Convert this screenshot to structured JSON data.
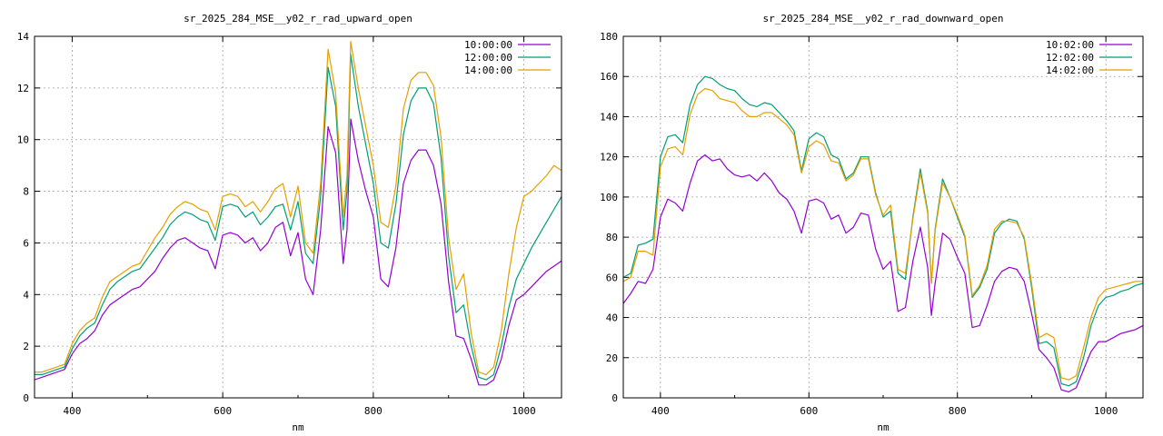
{
  "chart_data": [
    {
      "type": "line",
      "title": "sr_2025_284_MSE__y02_r_rad_upward_open",
      "xlabel": "nm",
      "ylabel": "",
      "xlim": [
        350,
        1050
      ],
      "ylim": [
        0,
        14
      ],
      "xticks": [
        400,
        600,
        800,
        1000
      ],
      "yticks": [
        0,
        2,
        4,
        6,
        8,
        10,
        12,
        14
      ],
      "grid": true,
      "legend": "top-right",
      "x": [
        350,
        360,
        370,
        380,
        390,
        400,
        410,
        420,
        430,
        440,
        450,
        460,
        470,
        480,
        490,
        500,
        510,
        520,
        530,
        540,
        550,
        560,
        570,
        580,
        590,
        600,
        610,
        620,
        630,
        640,
        650,
        660,
        670,
        680,
        690,
        700,
        710,
        720,
        730,
        740,
        750,
        760,
        765,
        770,
        780,
        790,
        800,
        810,
        820,
        830,
        840,
        850,
        860,
        870,
        880,
        890,
        900,
        910,
        920,
        930,
        940,
        950,
        960,
        970,
        980,
        990,
        1000,
        1010,
        1020,
        1030,
        1040,
        1050
      ],
      "series": [
        {
          "name": "10:00:00",
          "color": "#9400d3",
          "values": [
            0.7,
            0.8,
            0.9,
            1.0,
            1.1,
            1.7,
            2.1,
            2.3,
            2.6,
            3.2,
            3.6,
            3.8,
            4.0,
            4.2,
            4.3,
            4.6,
            4.9,
            5.4,
            5.8,
            6.1,
            6.2,
            6.0,
            5.8,
            5.7,
            5.0,
            6.3,
            6.4,
            6.3,
            6.0,
            6.2,
            5.7,
            6.0,
            6.6,
            6.8,
            5.5,
            6.4,
            4.6,
            4.0,
            6.5,
            10.5,
            9.5,
            5.2,
            6.5,
            10.8,
            9.2,
            8.0,
            7.0,
            4.6,
            4.3,
            5.8,
            8.3,
            9.2,
            9.6,
            9.6,
            9.0,
            7.5,
            4.5,
            2.4,
            2.3,
            1.5,
            0.5,
            0.5,
            0.7,
            1.5,
            2.8,
            3.8,
            4.0,
            4.3,
            4.6,
            4.9,
            5.1,
            5.3
          ]
        },
        {
          "name": "12:00:00",
          "color": "#009e73",
          "values": [
            0.9,
            0.9,
            1.0,
            1.1,
            1.2,
            1.9,
            2.4,
            2.7,
            2.9,
            3.6,
            4.2,
            4.5,
            4.7,
            4.9,
            5.0,
            5.4,
            5.8,
            6.2,
            6.7,
            7.0,
            7.2,
            7.1,
            6.9,
            6.8,
            6.1,
            7.4,
            7.5,
            7.4,
            7.0,
            7.2,
            6.7,
            7.0,
            7.4,
            7.5,
            6.5,
            7.6,
            5.6,
            5.2,
            7.8,
            12.8,
            11.3,
            6.5,
            8.0,
            13.3,
            11.3,
            9.8,
            8.3,
            6.0,
            5.8,
            7.5,
            10.2,
            11.5,
            12.0,
            12.0,
            11.4,
            9.3,
            5.5,
            3.3,
            3.6,
            2.0,
            0.8,
            0.7,
            0.9,
            2.0,
            3.5,
            4.6,
            5.2,
            5.8,
            6.3,
            6.8,
            7.3,
            7.8
          ]
        },
        {
          "name": "14:00:00",
          "color": "#e69f00",
          "values": [
            1.0,
            1.0,
            1.1,
            1.2,
            1.3,
            2.1,
            2.6,
            2.9,
            3.1,
            3.9,
            4.5,
            4.7,
            4.9,
            5.1,
            5.2,
            5.7,
            6.2,
            6.6,
            7.1,
            7.4,
            7.6,
            7.5,
            7.3,
            7.2,
            6.5,
            7.8,
            7.9,
            7.8,
            7.4,
            7.6,
            7.2,
            7.6,
            8.1,
            8.3,
            7.0,
            8.2,
            6.0,
            5.6,
            8.3,
            13.5,
            11.8,
            7.0,
            8.6,
            13.8,
            12.0,
            10.5,
            9.0,
            6.8,
            6.6,
            8.2,
            11.2,
            12.3,
            12.6,
            12.6,
            12.1,
            10.1,
            6.2,
            4.2,
            4.8,
            2.5,
            1.0,
            0.9,
            1.2,
            2.6,
            4.8,
            6.6,
            7.8,
            8.0,
            8.3,
            8.6,
            9.0,
            8.8
          ]
        }
      ]
    },
    {
      "type": "line",
      "title": "sr_2025_284_MSE__y02_r_rad_downward_open",
      "xlabel": "nm",
      "ylabel": "",
      "xlim": [
        350,
        1050
      ],
      "ylim": [
        0,
        180
      ],
      "xticks": [
        400,
        600,
        800,
        1000
      ],
      "yticks": [
        0,
        20,
        40,
        60,
        80,
        100,
        120,
        140,
        160,
        180
      ],
      "grid": true,
      "legend": "top-right",
      "x": [
        350,
        360,
        370,
        380,
        390,
        400,
        410,
        420,
        430,
        440,
        450,
        460,
        470,
        480,
        490,
        500,
        510,
        520,
        530,
        540,
        550,
        560,
        570,
        580,
        590,
        600,
        610,
        620,
        630,
        640,
        650,
        660,
        670,
        680,
        690,
        700,
        710,
        720,
        730,
        740,
        750,
        760,
        765,
        770,
        780,
        790,
        800,
        810,
        820,
        830,
        840,
        850,
        860,
        870,
        880,
        890,
        900,
        910,
        920,
        930,
        940,
        950,
        960,
        970,
        980,
        990,
        1000,
        1010,
        1020,
        1030,
        1040,
        1050
      ],
      "series": [
        {
          "name": "10:02:00",
          "color": "#9400d3",
          "values": [
            47,
            52,
            58,
            57,
            64,
            90,
            99,
            97,
            93,
            107,
            118,
            121,
            118,
            119,
            114,
            111,
            110,
            111,
            108,
            112,
            108,
            102,
            99,
            93,
            82,
            98,
            99,
            97,
            89,
            91,
            82,
            85,
            92,
            91,
            74,
            64,
            68,
            43,
            45,
            68,
            85,
            65,
            41,
            57,
            82,
            79,
            70,
            62,
            35,
            36,
            46,
            58,
            63,
            65,
            64,
            58,
            42,
            24,
            20,
            15,
            4,
            3,
            5,
            14,
            23,
            28,
            28,
            30,
            32,
            33,
            34,
            36
          ]
        },
        {
          "name": "12:02:00",
          "color": "#009e73",
          "values": [
            60,
            62,
            76,
            77,
            79,
            120,
            130,
            131,
            127,
            146,
            156,
            160,
            159,
            156,
            154,
            153,
            149,
            146,
            145,
            147,
            146,
            142,
            138,
            133,
            113,
            129,
            132,
            130,
            121,
            119,
            109,
            112,
            120,
            120,
            102,
            90,
            93,
            62,
            59,
            90,
            114,
            93,
            57,
            84,
            109,
            100,
            90,
            80,
            50,
            55,
            64,
            82,
            87,
            89,
            88,
            79,
            55,
            27,
            28,
            25,
            7,
            6,
            8,
            20,
            36,
            46,
            50,
            51,
            53,
            54,
            56,
            57
          ]
        },
        {
          "name": "14:02:00",
          "color": "#e69f00",
          "values": [
            58,
            60,
            73,
            73,
            71,
            115,
            124,
            125,
            121,
            141,
            151,
            154,
            153,
            149,
            148,
            147,
            143,
            140,
            140,
            142,
            142,
            139,
            136,
            131,
            112,
            125,
            128,
            126,
            118,
            117,
            108,
            111,
            119,
            119,
            101,
            91,
            96,
            64,
            62,
            89,
            112,
            92,
            57,
            83,
            107,
            100,
            91,
            81,
            51,
            56,
            66,
            84,
            88,
            88,
            87,
            80,
            57,
            30,
            32,
            30,
            10,
            9,
            11,
            25,
            40,
            50,
            54,
            55,
            56,
            57,
            58,
            58
          ]
        }
      ]
    }
  ]
}
